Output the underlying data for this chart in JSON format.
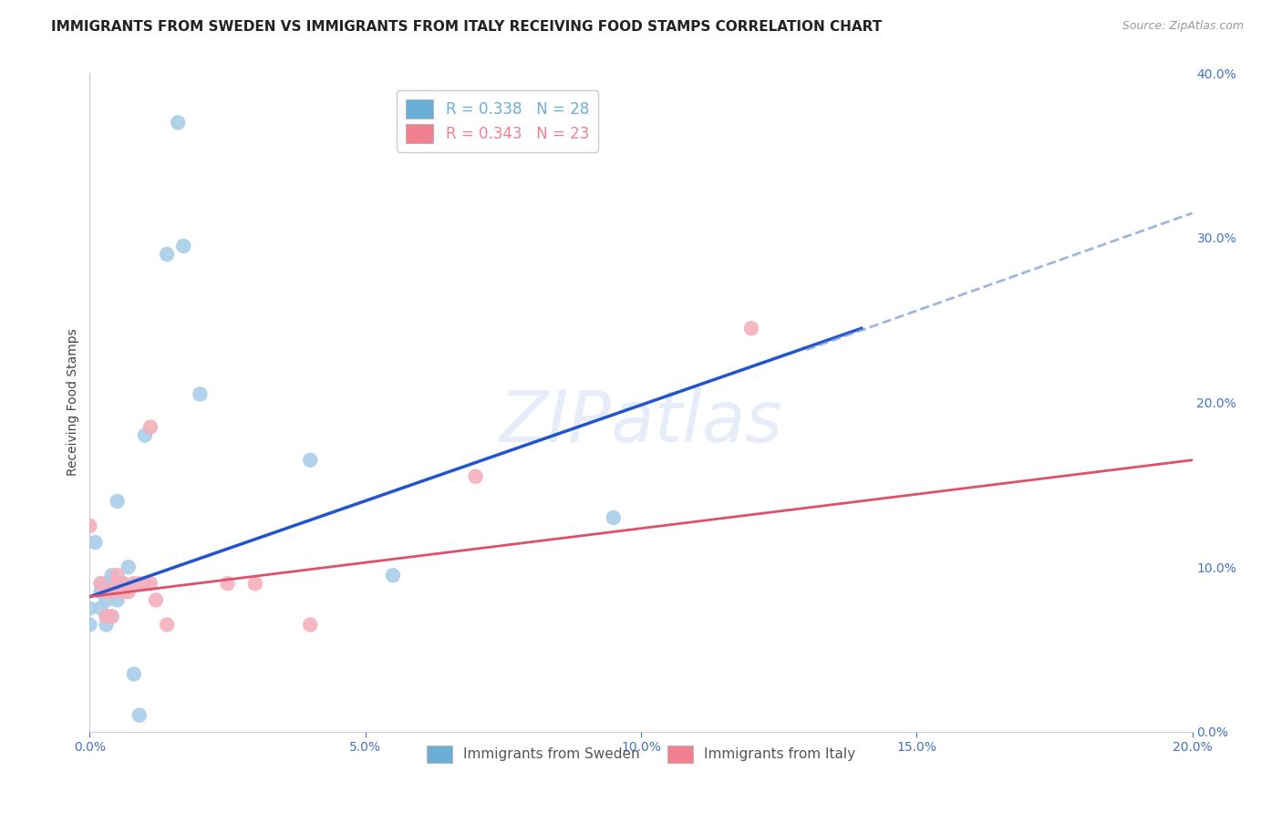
{
  "title": "IMMIGRANTS FROM SWEDEN VS IMMIGRANTS FROM ITALY RECEIVING FOOD STAMPS CORRELATION CHART",
  "source": "Source: ZipAtlas.com",
  "ylabel": "Receiving Food Stamps",
  "x_min": 0.0,
  "x_max": 0.2,
  "y_min": 0.0,
  "y_max": 0.4,
  "watermark": "ZIPatlas",
  "legend_top": [
    {
      "label": "R = 0.338   N = 28",
      "color": "#6baed6"
    },
    {
      "label": "R = 0.343   N = 23",
      "color": "#f08090"
    }
  ],
  "legend_bottom": [
    {
      "label": "Immigrants from Sweden",
      "color": "#6baed6"
    },
    {
      "label": "Immigrants from Italy",
      "color": "#f08090"
    }
  ],
  "sweden_scatter": [
    [
      0.0,
      0.075
    ],
    [
      0.0,
      0.065
    ],
    [
      0.001,
      0.115
    ],
    [
      0.002,
      0.075
    ],
    [
      0.002,
      0.085
    ],
    [
      0.002,
      0.09
    ],
    [
      0.003,
      0.065
    ],
    [
      0.003,
      0.07
    ],
    [
      0.003,
      0.08
    ],
    [
      0.003,
      0.09
    ],
    [
      0.004,
      0.07
    ],
    [
      0.004,
      0.09
    ],
    [
      0.004,
      0.095
    ],
    [
      0.005,
      0.08
    ],
    [
      0.005,
      0.09
    ],
    [
      0.005,
      0.14
    ],
    [
      0.006,
      0.09
    ],
    [
      0.007,
      0.1
    ],
    [
      0.008,
      0.035
    ],
    [
      0.01,
      0.18
    ],
    [
      0.014,
      0.29
    ],
    [
      0.016,
      0.37
    ],
    [
      0.017,
      0.295
    ],
    [
      0.02,
      0.205
    ],
    [
      0.04,
      0.165
    ],
    [
      0.055,
      0.095
    ],
    [
      0.009,
      0.01
    ],
    [
      0.095,
      0.13
    ]
  ],
  "italy_scatter": [
    [
      0.0,
      0.125
    ],
    [
      0.002,
      0.09
    ],
    [
      0.003,
      0.085
    ],
    [
      0.003,
      0.07
    ],
    [
      0.004,
      0.085
    ],
    [
      0.004,
      0.07
    ],
    [
      0.005,
      0.095
    ],
    [
      0.005,
      0.09
    ],
    [
      0.006,
      0.09
    ],
    [
      0.006,
      0.085
    ],
    [
      0.007,
      0.085
    ],
    [
      0.008,
      0.09
    ],
    [
      0.009,
      0.09
    ],
    [
      0.01,
      0.09
    ],
    [
      0.011,
      0.185
    ],
    [
      0.011,
      0.09
    ],
    [
      0.012,
      0.08
    ],
    [
      0.014,
      0.065
    ],
    [
      0.025,
      0.09
    ],
    [
      0.03,
      0.09
    ],
    [
      0.04,
      0.065
    ],
    [
      0.07,
      0.155
    ],
    [
      0.12,
      0.245
    ]
  ],
  "sweden_line_solid": {
    "x": [
      0.0,
      0.14
    ],
    "y": [
      0.082,
      0.245
    ]
  },
  "sweden_line_dashed": {
    "x": [
      0.13,
      0.2
    ],
    "y": [
      0.232,
      0.315
    ]
  },
  "italy_line": {
    "x": [
      0.0,
      0.2
    ],
    "y": [
      0.082,
      0.165
    ]
  },
  "sweden_line_color": "#2255cc",
  "sweden_line_dashed_color": "#7799cc",
  "italy_line_color": "#e0506a",
  "sweden_dot_color": "#a8cde8",
  "italy_dot_color": "#f4b0bc",
  "dot_size": 140,
  "title_fontsize": 11,
  "source_fontsize": 9,
  "axis_tick_color": "#4472c4",
  "grid_color": "#d5dce8",
  "background_color": "#ffffff"
}
